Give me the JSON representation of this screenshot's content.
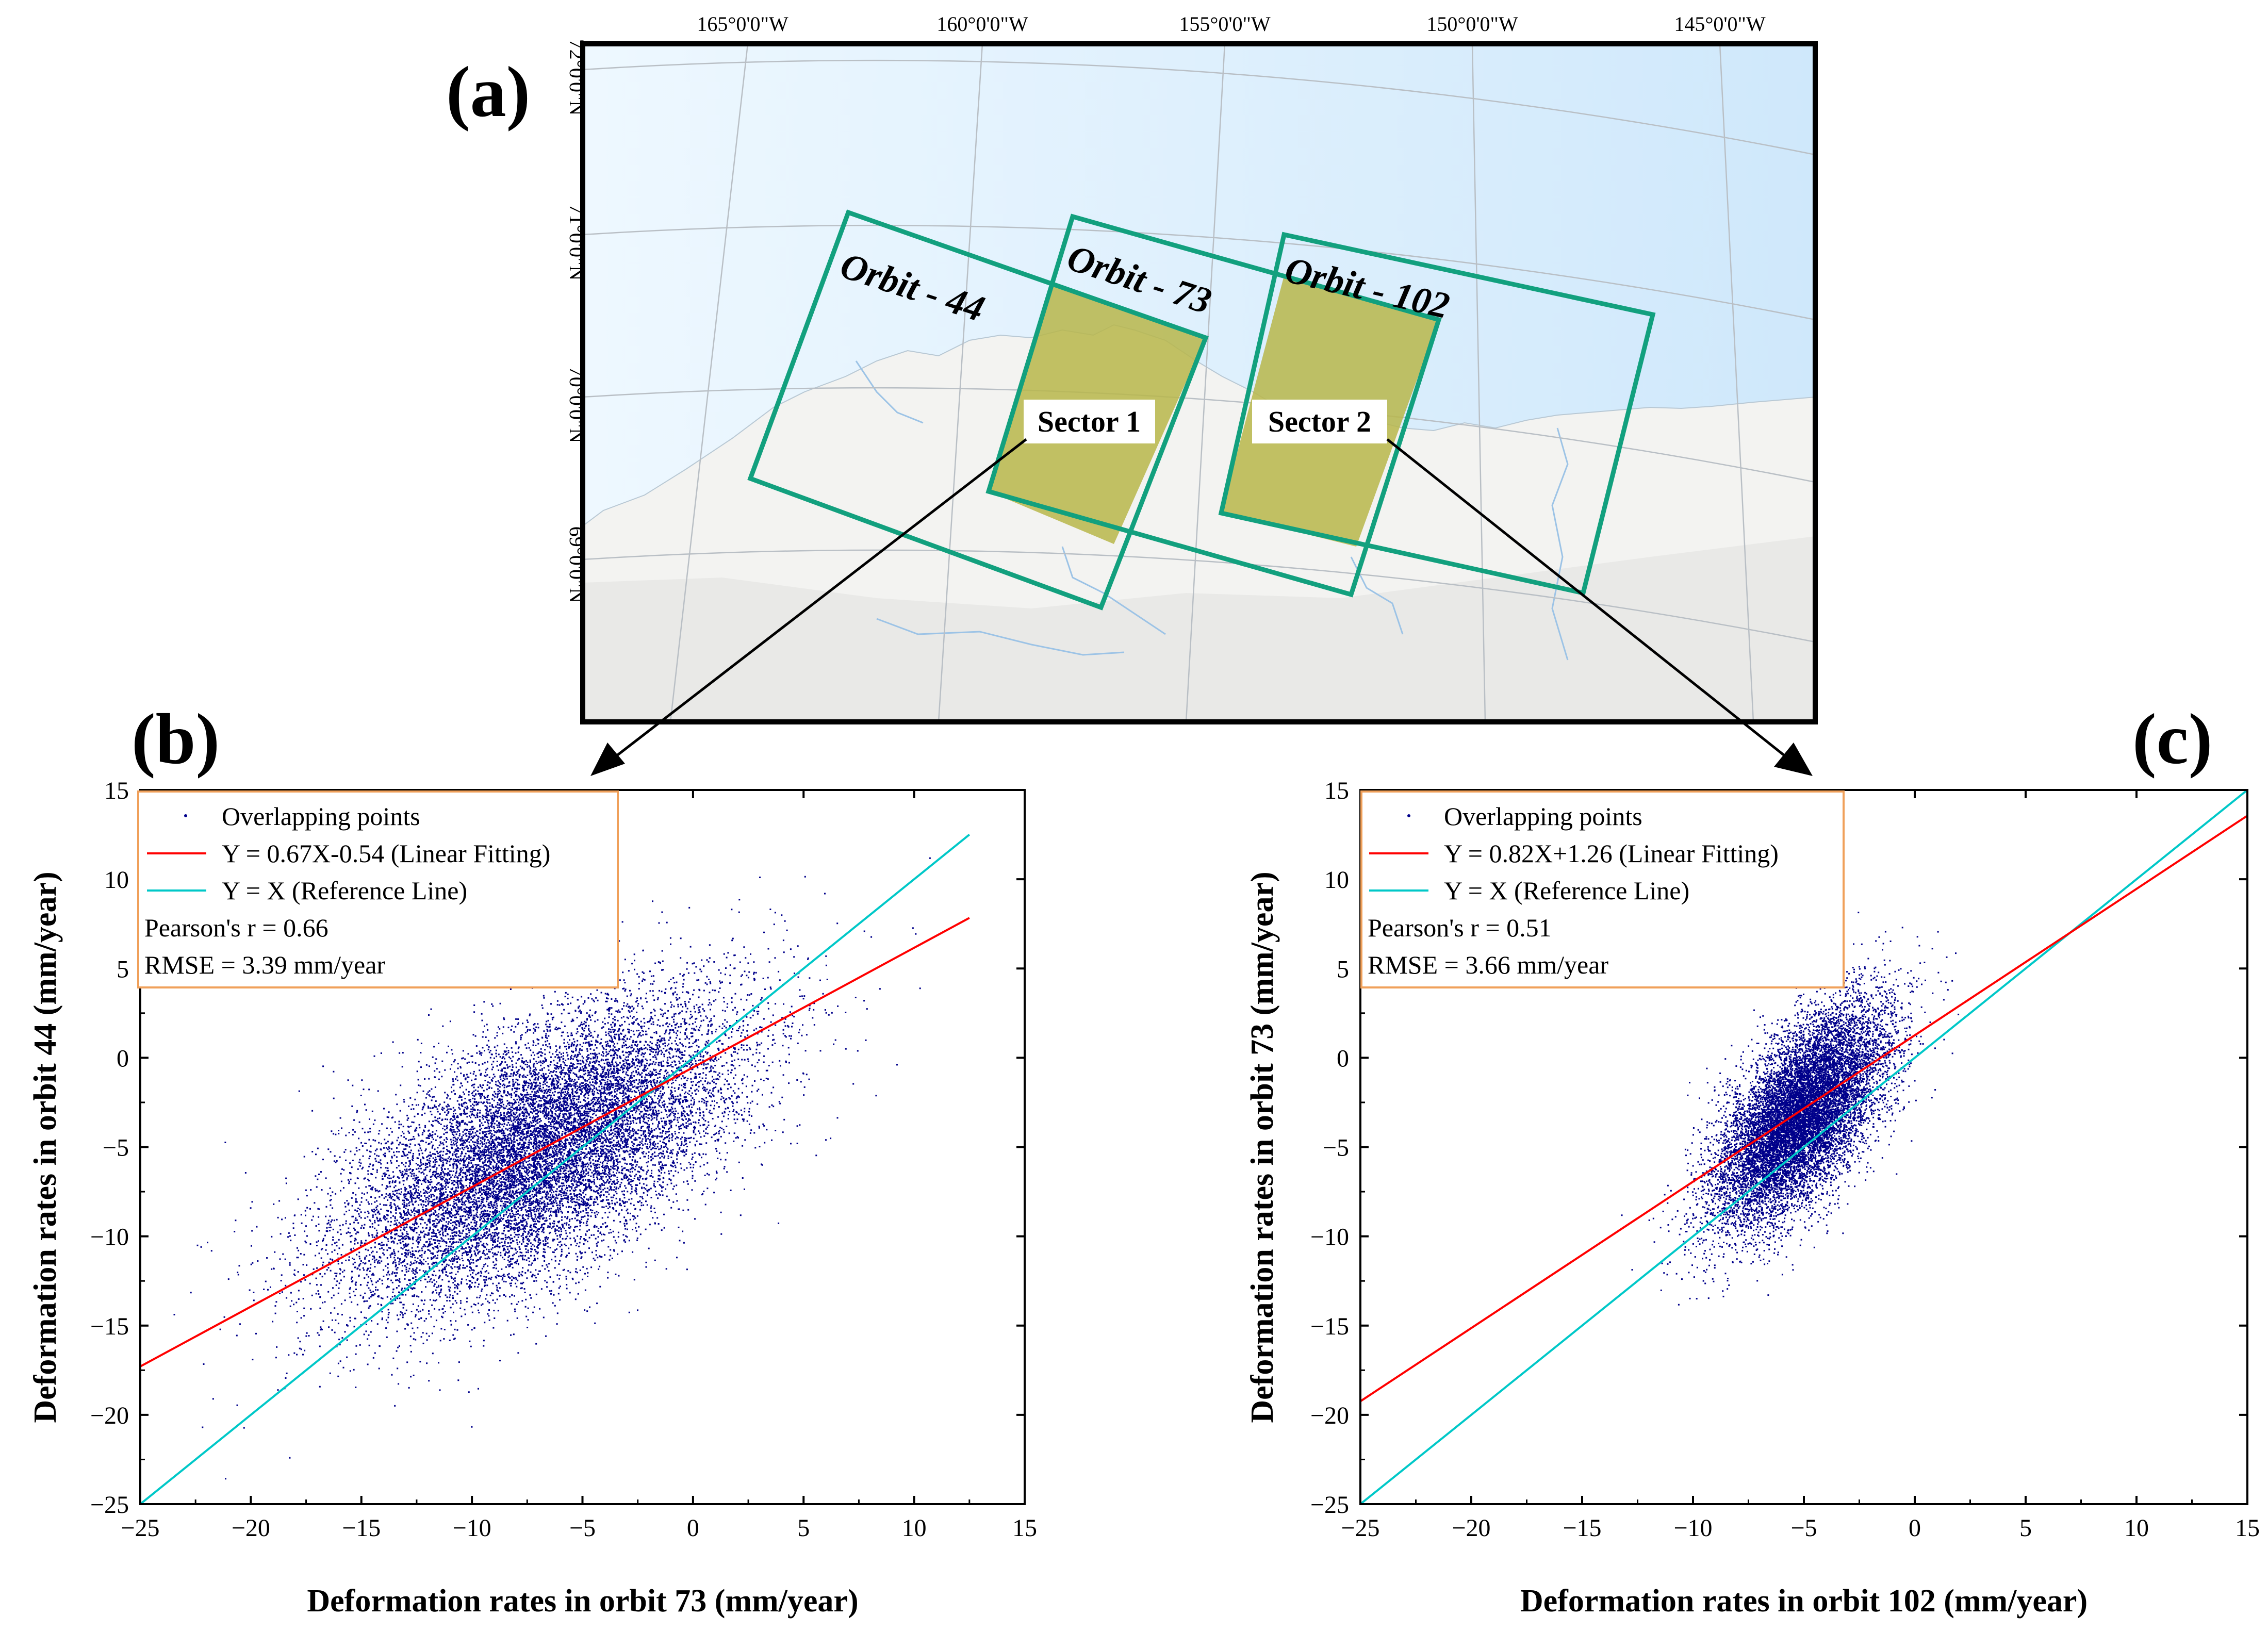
{
  "panels": {
    "a": "(a)",
    "b": "(b)",
    "c": "(c)"
  },
  "map": {
    "lon_labels": [
      "165°0'0\"W",
      "160°0'0\"W",
      "155°0'0\"W",
      "150°0'0\"W",
      "145°0'0\"W"
    ],
    "lat_labels": [
      "72°0'0\"N",
      "71°0'0\"N",
      "70°0'0\"N",
      "69°0'0\"N"
    ],
    "orbits": [
      "Orbit - 44",
      "Orbit - 73",
      "Orbit - 102"
    ],
    "sectors": [
      "Sector 1",
      "Sector 2"
    ],
    "colors": {
      "ocean": "#dcefff",
      "land": "#f4f4f4",
      "orbit": "#12a07e",
      "sector": "#b7b64a"
    }
  },
  "chart_data": [
    {
      "type": "scatter",
      "panel": "(b)",
      "xlabel": "Deformation rates in orbit 73 (mm/year)",
      "ylabel": "Deformation rates in orbit 44 (mm/year)",
      "xlim": [
        -25,
        15
      ],
      "ylim": [
        -25,
        15
      ],
      "xticks": [
        -25,
        -20,
        -15,
        -10,
        -5,
        0,
        5,
        10,
        15
      ],
      "yticks": [
        -25,
        -20,
        -15,
        -10,
        -5,
        0,
        5,
        10,
        15
      ],
      "xtick_labels": [
        "−25",
        "−20",
        "−15",
        "−10",
        "−5",
        "0",
        "5",
        "10",
        "15"
      ],
      "ytick_labels": [
        "−25",
        "−20",
        "−15",
        "−10",
        "−5",
        "0",
        "5",
        "10",
        "15"
      ],
      "scatter": {
        "name": "Overlapping points",
        "center_x": -7,
        "center_y": -5.2,
        "sd_x": 4.5,
        "sd_y": 4.2,
        "n": 14000,
        "color": "#00008b"
      },
      "fit_line": {
        "name": "Y = 0.67X-0.54 (Linear Fitting)",
        "slope": 0.67,
        "intercept": -0.54,
        "x_range": [
          -25,
          12.5
        ],
        "color": "#ff0000"
      },
      "ref_line": {
        "name": "Y = X (Reference Line)",
        "slope": 1,
        "intercept": 0,
        "x_range": [
          -25,
          12.5
        ],
        "color": "#00c8c8"
      },
      "stats": [
        "Pearson's r = 0.66",
        "RMSE = 3.39 mm/year"
      ]
    },
    {
      "type": "scatter",
      "panel": "(c)",
      "xlabel": "Deformation rates in orbit 102 (mm/year)",
      "ylabel": "Deformation rates in orbit 73 (mm/year)",
      "xlim": [
        -25,
        15
      ],
      "ylim": [
        -25,
        15
      ],
      "xticks": [
        -25,
        -20,
        -15,
        -10,
        -5,
        0,
        5,
        10,
        15
      ],
      "yticks": [
        -25,
        -20,
        -15,
        -10,
        -5,
        0,
        5,
        10,
        15
      ],
      "xtick_labels": [
        "−25",
        "−20",
        "−15",
        "−10",
        "−5",
        "0",
        "5",
        "10",
        "15"
      ],
      "ytick_labels": [
        "−25",
        "−20",
        "−15",
        "−10",
        "−5",
        "0",
        "5",
        "10",
        "15"
      ],
      "scatter": {
        "name": "Overlapping points",
        "center_x": -5.2,
        "center_y": -3.2,
        "sd_x": 1.9,
        "sd_y": 3.0,
        "n": 12000,
        "color": "#00008b"
      },
      "fit_line": {
        "name": "Y = 0.82X+1.26 (Linear Fitting)",
        "slope": 0.82,
        "intercept": 1.26,
        "x_range": [
          -25,
          15
        ],
        "color": "#ff0000"
      },
      "ref_line": {
        "name": "Y = X (Reference Line)",
        "slope": 1,
        "intercept": 0,
        "x_range": [
          -25,
          15
        ],
        "color": "#00c8c8"
      },
      "stats": [
        "Pearson's r = 0.51",
        "RMSE = 3.66 mm/year"
      ]
    }
  ]
}
